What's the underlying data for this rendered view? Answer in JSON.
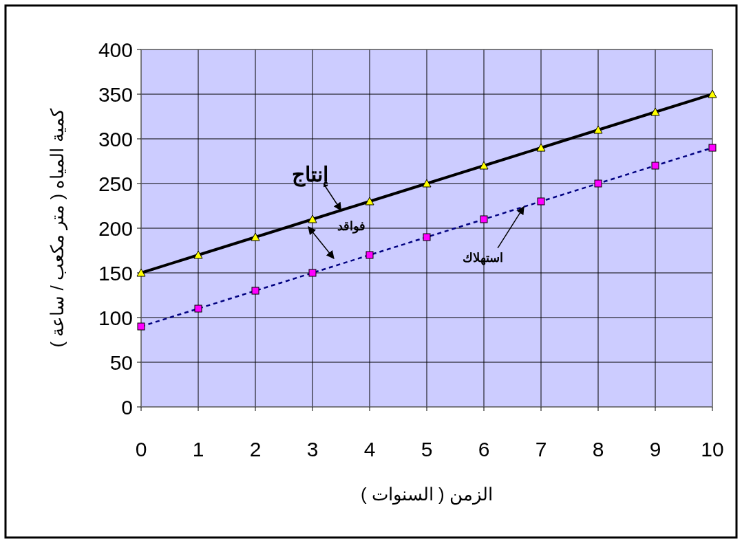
{
  "chart_data": {
    "type": "line",
    "x": [
      0,
      1,
      2,
      3,
      4,
      5,
      6,
      7,
      8,
      9,
      10
    ],
    "xlabel": "الزمن ( السنوات )",
    "ylabel": "كمية المياه ( متر مكعب / ساعة )",
    "xlim": [
      0,
      10
    ],
    "xticks": [
      0,
      1,
      2,
      3,
      4,
      5,
      6,
      7,
      8,
      9,
      10
    ],
    "ylim": [
      0,
      400
    ],
    "yticks": [
      0,
      50,
      100,
      150,
      200,
      250,
      300,
      350,
      400
    ],
    "grid": true,
    "series": [
      {
        "color": "#000000",
        "marker": "triangle",
        "line_style": "solid",
        "values": [
          150,
          170,
          190,
          210,
          230,
          250,
          270,
          290,
          310,
          330,
          350
        ]
      },
      {
        "color": "#000080",
        "marker": "square",
        "line_style": "dashed",
        "values": [
          90,
          110,
          130,
          150,
          170,
          190,
          210,
          230,
          250,
          270,
          290
        ]
      }
    ],
    "annotations": [
      {
        "text": "إنتاج",
        "x": 3.5,
        "y": 220
      },
      "فواقد",
      {
        "text": "استهلاك",
        "x": 6.7,
        "y": 224
      }
    ]
  }
}
